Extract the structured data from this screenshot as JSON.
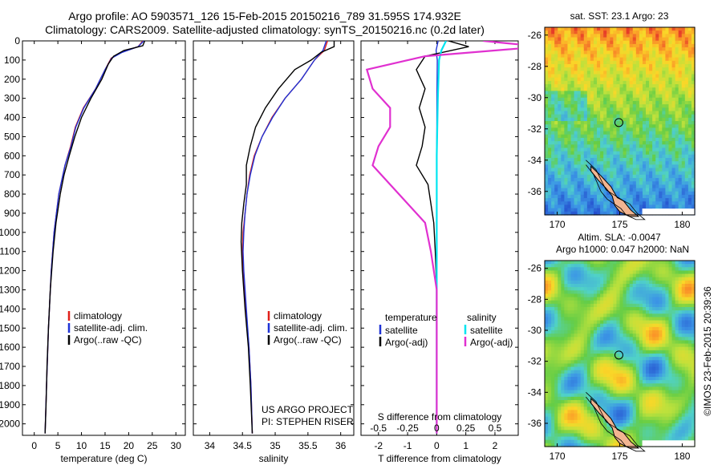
{
  "header": {
    "line1": "Argo profile: AO 5903571_126 15-Feb-2015 20150216_789 31.595S 174.932E",
    "line2": "Climatology: CARS2009. Satellite-adjusted climatology: synTS_20150216.nc (0.2d later)"
  },
  "colors": {
    "climatology": "#e0201a",
    "satellite": "#1f33d6",
    "argo": "#000000",
    "sat_t": "#1f33d6",
    "sat_s": "#00e5f0",
    "argo_s": "#e030d0",
    "land": "#f2b591"
  },
  "depth_axis": {
    "label": "",
    "ticks": [
      0,
      100,
      200,
      300,
      400,
      500,
      600,
      700,
      800,
      900,
      1000,
      1100,
      1200,
      1300,
      1400,
      1500,
      1600,
      1700,
      1800,
      1900,
      2000
    ],
    "max": 2060
  },
  "chart_data": [
    {
      "type": "line",
      "name": "temperature-panel",
      "xlabel": "temperature (deg C)",
      "xlim": [
        -2.5,
        32
      ],
      "xticks": [
        0,
        5,
        10,
        15,
        20,
        25,
        30
      ],
      "ylim": [
        2060,
        0
      ],
      "legend": [
        "climatology",
        "satellite-adj. clim.",
        "Argo(..raw -QC)"
      ],
      "series": [
        {
          "name": "climatology",
          "depth": [
            0,
            30,
            60,
            90,
            150,
            250,
            350,
            450,
            550,
            650,
            800,
            1000,
            1200,
            1500,
            1800,
            2050
          ],
          "values": [
            23,
            22,
            18.5,
            16.3,
            15,
            13,
            10.4,
            8.7,
            7.7,
            6.5,
            5.2,
            4.2,
            3.6,
            3.0,
            2.6,
            2.3
          ]
        },
        {
          "name": "satellite-adj. clim.",
          "depth": [
            0,
            30,
            60,
            90,
            150,
            250,
            350,
            450,
            550,
            650,
            800,
            1000,
            1200,
            1500,
            1800,
            2050
          ],
          "values": [
            23.2,
            22,
            18.6,
            16.4,
            15,
            13,
            10.5,
            8.8,
            7.8,
            6.5,
            5.2,
            4.2,
            3.6,
            3.0,
            2.6,
            2.3
          ]
        },
        {
          "name": "Argo(..raw -QC)",
          "depth": [
            0,
            25,
            50,
            80,
            120,
            200,
            300,
            400,
            500,
            600,
            700,
            800,
            950,
            1100,
            1300,
            1500,
            1700,
            1900,
            2050
          ],
          "values": [
            23.4,
            23,
            19,
            16.8,
            15.7,
            14.3,
            12,
            10,
            8.6,
            7.4,
            6.3,
            5.5,
            4.6,
            4.0,
            3.4,
            3.0,
            2.7,
            2.5,
            2.3
          ]
        }
      ]
    },
    {
      "type": "line",
      "name": "salinity-panel",
      "xlabel": "salinity",
      "xlim": [
        33.75,
        36.2
      ],
      "xticks": [
        34,
        34.5,
        35,
        35.5,
        36
      ],
      "ylim": [
        2060,
        0
      ],
      "legend": [
        "climatology",
        "satellite-adj. clim.",
        "Argo(..raw -QC)"
      ],
      "annotation": [
        "US ARGO PROJECT",
        "PI: STEPHEN RISER"
      ],
      "series": [
        {
          "name": "climatology",
          "depth": [
            0,
            50,
            100,
            200,
            300,
            400,
            500,
            600,
            700,
            800,
            900,
            1000,
            1100,
            1200,
            1400,
            1600,
            1800,
            2050
          ],
          "values": [
            35.8,
            35.75,
            35.6,
            35.4,
            35.15,
            34.95,
            34.8,
            34.68,
            34.61,
            34.57,
            34.54,
            34.51,
            34.5,
            34.51,
            34.55,
            34.6,
            34.63,
            34.65
          ]
        },
        {
          "name": "satellite-adj. clim.",
          "depth": [
            0,
            50,
            100,
            200,
            300,
            400,
            500,
            600,
            700,
            800,
            900,
            1000,
            1100,
            1200,
            1400,
            1600,
            1800,
            2050
          ],
          "values": [
            35.78,
            35.73,
            35.6,
            35.4,
            35.15,
            34.96,
            34.8,
            34.69,
            34.62,
            34.57,
            34.54,
            34.52,
            34.51,
            34.52,
            34.56,
            34.6,
            34.63,
            34.65
          ]
        },
        {
          "name": "Argo(..raw -QC)",
          "depth": [
            0,
            30,
            60,
            100,
            150,
            250,
            350,
            450,
            550,
            650,
            750,
            850,
            950,
            1050,
            1200,
            1400,
            1600,
            1800,
            2050
          ],
          "values": [
            35.9,
            35.9,
            35.7,
            35.55,
            35.3,
            35.05,
            34.85,
            34.7,
            34.62,
            34.56,
            34.56,
            34.52,
            34.49,
            34.48,
            34.5,
            34.54,
            34.59,
            34.62,
            34.65
          ]
        }
      ]
    },
    {
      "type": "line",
      "name": "difference-panel",
      "xlabel": "T difference from climatology",
      "xlim": [
        -2.6,
        2.8
      ],
      "xticks": [
        -2,
        -1,
        0,
        1,
        2
      ],
      "top_label": "S difference from climatology",
      "top_ticks": [
        "-0.5",
        "-0.25",
        "0",
        "0.25",
        "0.5"
      ],
      "ylim": [
        2060,
        0
      ],
      "legend_groups": [
        {
          "title": "temperature",
          "items": [
            "satellite",
            "Argo(-adj)"
          ]
        },
        {
          "title": "salinity",
          "items": [
            "satellite",
            "Argo(-adj)"
          ]
        }
      ],
      "series": [
        {
          "name": "temperature satellite",
          "depth": [
            0,
            50,
            100,
            300,
            600,
            1000,
            2050
          ],
          "values": [
            0.05,
            -0.02,
            0.02,
            0.01,
            0.0,
            0.0,
            0.0
          ]
        },
        {
          "name": "temperature Argo(-adj)",
          "depth": [
            0,
            30,
            80,
            150,
            250,
            350,
            450,
            550,
            650,
            750,
            850,
            950,
            1100,
            1300,
            1500,
            1800,
            2050
          ],
          "values": [
            0.4,
            1.1,
            -0.4,
            -0.7,
            -0.4,
            -0.6,
            -0.4,
            -0.5,
            -0.7,
            -0.3,
            -0.2,
            -0.1,
            -0.05,
            0.0,
            0.0,
            0.0,
            0.0
          ]
        },
        {
          "name": "salinity satellite",
          "depth": [
            0,
            50,
            100,
            300,
            600,
            1000,
            2050
          ],
          "values": [
            0.08,
            0.04,
            0.02,
            0.01,
            0.0,
            0.0,
            0.0
          ]
        },
        {
          "name": "salinity Argo(-adj)",
          "depth": [
            0,
            30,
            80,
            150,
            250,
            350,
            450,
            550,
            650,
            750,
            850,
            950,
            1100,
            1300,
            1500,
            1800,
            2050
          ],
          "values": [
            0.4,
            0.9,
            -0.1,
            -0.6,
            -0.55,
            -0.4,
            -0.4,
            -0.5,
            -0.55,
            -0.4,
            -0.25,
            -0.1,
            -0.05,
            0.0,
            0.0,
            0.0,
            0.0
          ]
        }
      ]
    },
    {
      "type": "heatmap",
      "name": "sst-map",
      "title": "sat. SST: 23.1 Argo: 23",
      "xlim": [
        169,
        181
      ],
      "ylim": [
        -37.5,
        -25.5
      ],
      "xticks": [
        170,
        175,
        180
      ],
      "yticks": [
        -26,
        -28,
        -30,
        -32,
        -34,
        -36
      ],
      "argo_position": [
        174.932,
        -31.595
      ]
    },
    {
      "type": "heatmap",
      "name": "sla-map",
      "title": "Altim. SLA: -0.0047",
      "subtitle": "Argo h1000: 0.047 h2000: NaN",
      "xlim": [
        169,
        181
      ],
      "ylim": [
        -37.5,
        -25.5
      ],
      "xticks": [
        170,
        175,
        180
      ],
      "yticks": [
        -26,
        -28,
        -30,
        -32,
        -34,
        -36
      ],
      "argo_position": [
        174.932,
        -31.595
      ]
    }
  ],
  "footer": {
    "credit": "©IMOS 23-Feb-2015 20:39:36"
  }
}
